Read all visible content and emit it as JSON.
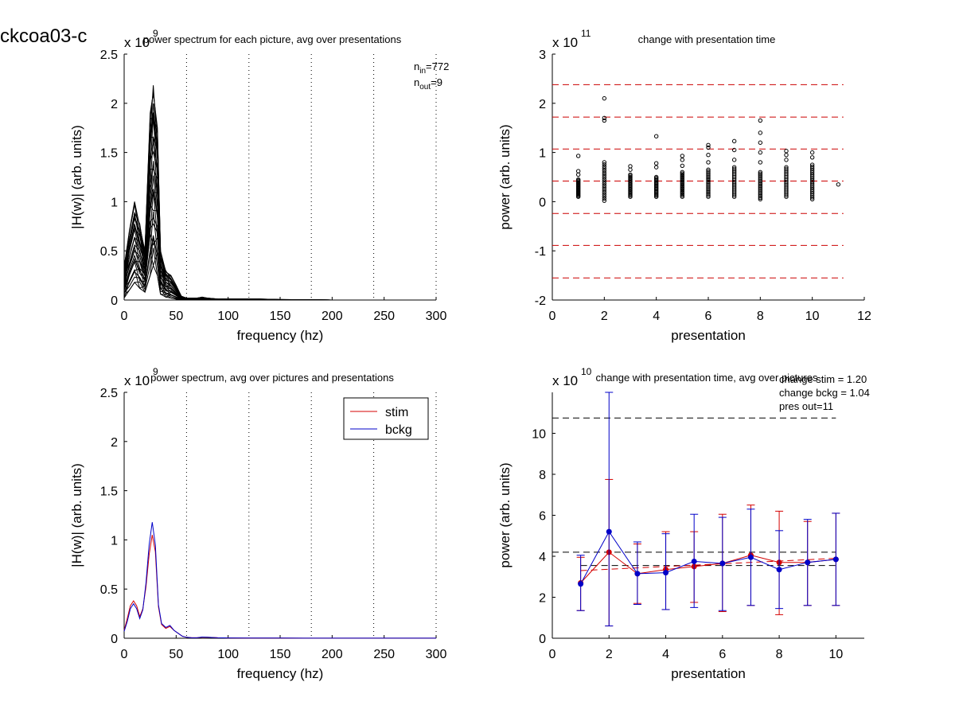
{
  "figure_title": "ckcoa03-c",
  "chart_data": [
    {
      "type": "line",
      "title": "power spectrum for each picture, avg over presentations",
      "xlabel": "frequency (hz)",
      "ylabel": "|H(w)| (arb. units)",
      "exponent_label": "x 10",
      "exponent": "9",
      "xlim": [
        0,
        300
      ],
      "ylim": [
        0,
        2.5
      ],
      "xticks": [
        "0",
        "50",
        "100",
        "150",
        "200",
        "250",
        "300"
      ],
      "yticks": [
        "0",
        "0.5",
        "1",
        "1.5",
        "2",
        "2.5"
      ],
      "vlines": [
        60,
        120,
        180,
        240,
        300
      ],
      "annotations": [
        {
          "base": "n",
          "sub": "in",
          "value": "=772"
        },
        {
          "base": "n",
          "sub": "out",
          "value": "=9"
        }
      ],
      "note": "Many overlapping black spectra (one per picture)",
      "envelope": {
        "x": [
          0,
          5,
          10,
          15,
          20,
          25,
          28,
          32,
          35,
          40,
          45,
          50,
          55,
          60,
          70,
          75,
          80,
          90,
          100,
          130,
          150,
          200,
          300
        ],
        "upper": [
          0.35,
          0.7,
          1.0,
          0.78,
          0.5,
          1.9,
          2.2,
          1.75,
          0.5,
          0.3,
          0.25,
          0.15,
          0.04,
          0.02,
          0.02,
          0.03,
          0.02,
          0.01,
          0.01,
          0.01,
          0.005,
          0.0,
          0.0
        ],
        "lower": [
          0.02,
          0.1,
          0.18,
          0.12,
          0.08,
          0.25,
          0.35,
          0.25,
          0.06,
          0.03,
          0.02,
          0.01,
          0.0,
          0.0,
          0.0,
          0.0,
          0.0,
          0.0,
          0.0,
          0.0,
          0.0,
          0.0,
          0.0
        ]
      },
      "series_color": "#000000"
    },
    {
      "type": "scatter",
      "title": "change with presentation time",
      "xlabel": "presentation",
      "ylabel": "power (arb. units)",
      "exponent_label": "x 10",
      "exponent": "11",
      "xlim": [
        0,
        12
      ],
      "ylim": [
        -2,
        3
      ],
      "xticks": [
        "0",
        "2",
        "4",
        "6",
        "8",
        "10",
        "12"
      ],
      "yticks": [
        "-2",
        "-1",
        "0",
        "1",
        "2",
        "3"
      ],
      "hlines": [
        2.38,
        1.72,
        1.07,
        0.42,
        -0.24,
        -0.89,
        -1.55
      ],
      "hline_color": "#cc0000",
      "point_columns": [
        {
          "x": 1,
          "band": [
            0.1,
            0.45
          ],
          "outliers": [
            0.55,
            0.62,
            0.93
          ]
        },
        {
          "x": 2,
          "band": [
            0.02,
            0.8
          ],
          "outliers": [
            1.65,
            1.7,
            2.1
          ]
        },
        {
          "x": 3,
          "band": [
            0.1,
            0.55
          ],
          "outliers": [
            0.65,
            0.72
          ]
        },
        {
          "x": 4,
          "band": [
            0.1,
            0.5
          ],
          "outliers": [
            0.7,
            0.78,
            1.33
          ]
        },
        {
          "x": 5,
          "band": [
            0.1,
            0.6
          ],
          "outliers": [
            0.73,
            0.85,
            0.93
          ]
        },
        {
          "x": 6,
          "band": [
            0.1,
            0.65
          ],
          "outliers": [
            0.8,
            0.95,
            1.1,
            1.15
          ]
        },
        {
          "x": 7,
          "band": [
            0.1,
            0.7
          ],
          "outliers": [
            0.85,
            1.05,
            1.23
          ]
        },
        {
          "x": 8,
          "band": [
            0.05,
            0.6
          ],
          "outliers": [
            0.8,
            1.0,
            1.2,
            1.4,
            1.65
          ]
        },
        {
          "x": 9,
          "band": [
            0.1,
            0.7
          ],
          "outliers": [
            0.85,
            0.95,
            1.03
          ]
        },
        {
          "x": 10,
          "band": [
            0.05,
            0.75
          ],
          "outliers": [
            0.9,
            1.0
          ]
        },
        {
          "x": 11,
          "band": null,
          "outliers": [
            0.35
          ]
        }
      ],
      "marker": "open-circle",
      "marker_color": "#000000"
    },
    {
      "type": "line",
      "title": "power spectrum, avg over pictures and presentations",
      "xlabel": "frequency (hz)",
      "ylabel": "|H(w)| (arb. units)",
      "exponent_label": "x 10",
      "exponent": "9",
      "xlim": [
        0,
        300
      ],
      "ylim": [
        0,
        2.5
      ],
      "xticks": [
        "0",
        "50",
        "100",
        "150",
        "200",
        "250",
        "300"
      ],
      "yticks": [
        "0",
        "0.5",
        "1",
        "1.5",
        "2",
        "2.5"
      ],
      "vlines": [
        60,
        120,
        180,
        240,
        300
      ],
      "legend_position": "top-right",
      "x": [
        0,
        3,
        6,
        9,
        12,
        15,
        18,
        21,
        24,
        27,
        30,
        33,
        36,
        40,
        44,
        48,
        52,
        56,
        60,
        65,
        70,
        75,
        80,
        90,
        100,
        120,
        150,
        200,
        250,
        300
      ],
      "series": [
        {
          "name": "stim",
          "color": "#d40000",
          "values": [
            0.08,
            0.2,
            0.33,
            0.38,
            0.33,
            0.22,
            0.3,
            0.52,
            0.85,
            1.05,
            0.88,
            0.32,
            0.14,
            0.1,
            0.12,
            0.08,
            0.05,
            0.02,
            0.01,
            0.005,
            0.005,
            0.01,
            0.01,
            0.005,
            0.003,
            0.002,
            0.002,
            0.001,
            0.001,
            0.001
          ]
        },
        {
          "name": "bckg",
          "color": "#0000c8",
          "values": [
            0.07,
            0.17,
            0.3,
            0.35,
            0.3,
            0.2,
            0.29,
            0.56,
            0.95,
            1.18,
            0.95,
            0.34,
            0.15,
            0.11,
            0.13,
            0.08,
            0.05,
            0.02,
            0.01,
            0.005,
            0.005,
            0.012,
            0.01,
            0.005,
            0.003,
            0.002,
            0.002,
            0.001,
            0.001,
            0.001
          ]
        }
      ]
    },
    {
      "type": "line",
      "title": "change with presentation time, avg over pictures",
      "xlabel": "presentation",
      "ylabel": "power (arb. units)",
      "exponent_label": "x 10",
      "exponent": "10",
      "xlim": [
        0,
        11
      ],
      "ylim": [
        0,
        12
      ],
      "xticks": [
        "0",
        "2",
        "4",
        "6",
        "8",
        "10"
      ],
      "yticks": [
        "0",
        "2",
        "4",
        "6",
        "8",
        "10"
      ],
      "annotations": [
        "change stim = 1.20",
        "change bckg = 1.04",
        "pres out=11"
      ],
      "hlines": [
        {
          "y": 10.75,
          "from": 0,
          "to": 10,
          "color": "#000000",
          "dash": true
        },
        {
          "y": 4.2,
          "from": 0,
          "to": 10,
          "color": "#000000",
          "dash": true
        },
        {
          "y": 3.55,
          "from": 1,
          "to": 10,
          "color": "#000000",
          "dash": true
        }
      ],
      "x": [
        1,
        2,
        3,
        4,
        5,
        6,
        7,
        8,
        9,
        10
      ],
      "series": [
        {
          "name": "stim",
          "color": "#d40000",
          "values": [
            2.7,
            4.2,
            3.15,
            3.35,
            3.5,
            3.65,
            4.05,
            3.7,
            3.7,
            3.85
          ],
          "err_low": [
            1.35,
            0.6,
            1.7,
            1.4,
            1.75,
            1.3,
            1.6,
            1.15,
            1.6,
            1.6
          ],
          "err_high": [
            3.95,
            7.75,
            4.6,
            5.2,
            5.2,
            6.05,
            6.5,
            6.2,
            5.7,
            6.1
          ],
          "trend": [
            3.3,
            3.9
          ]
        },
        {
          "name": "bckg",
          "color": "#0000c8",
          "values": [
            2.65,
            5.2,
            3.15,
            3.2,
            3.75,
            3.65,
            3.95,
            3.35,
            3.7,
            3.85
          ],
          "err_low": [
            1.35,
            0.6,
            1.65,
            1.4,
            1.5,
            1.35,
            1.6,
            1.45,
            1.6,
            1.6
          ],
          "err_high": [
            4.05,
            12.0,
            4.7,
            5.1,
            6.05,
            5.9,
            6.3,
            5.25,
            5.8,
            6.1
          ]
        }
      ]
    }
  ]
}
